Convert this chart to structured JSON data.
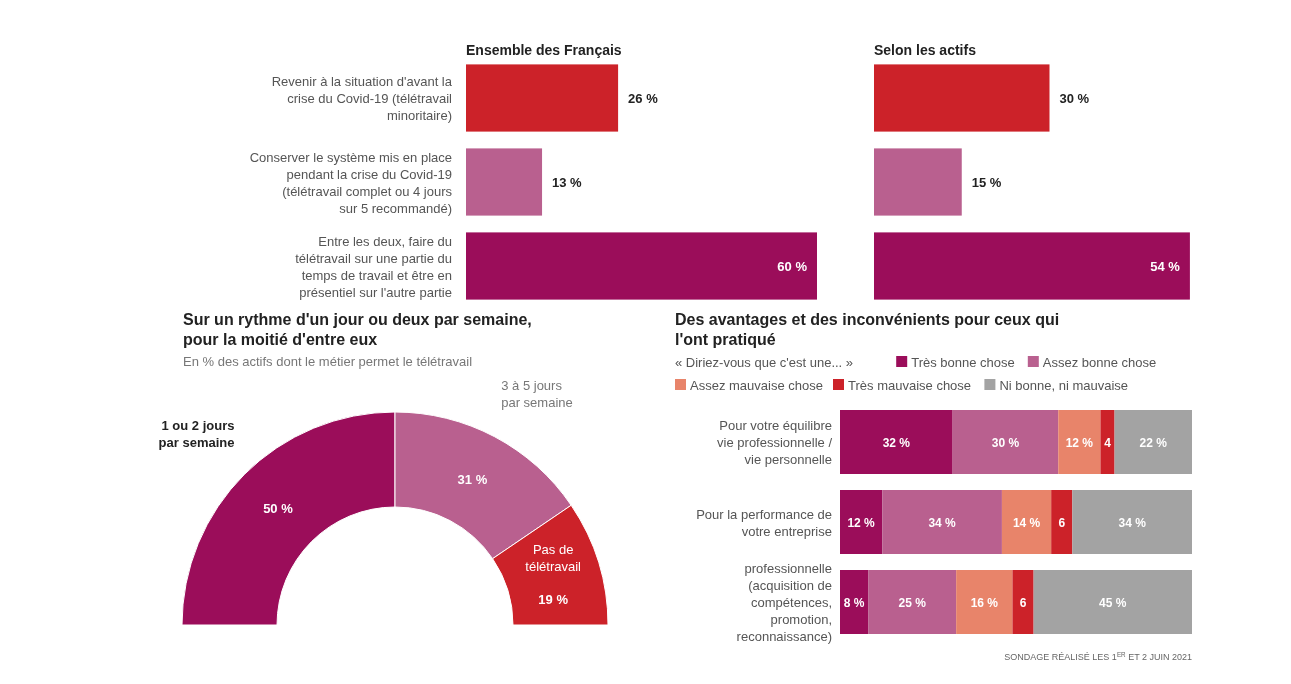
{
  "chart_data": [
    {
      "type": "bar",
      "orientation": "horizontal",
      "title": "Ensemble des Français",
      "categories": [
        "Revenir à la situation d'avant la crise du Covid-19 (télétravail minoritaire)",
        "Conserver le système mis en place pendant la crise du Covid-19 (télétravail complet ou 4 jours sur 5 recommandé)",
        "Entre les deux, faire du télétravail sur une partie du temps de travail et être en présentiel sur l'autre partie"
      ],
      "values": [
        26,
        13,
        60
      ],
      "colors": [
        "#cc2229",
        "#b9608f",
        "#9b0d5a"
      ],
      "value_labels": [
        "26 %",
        "13 %",
        "60 %"
      ]
    },
    {
      "type": "bar",
      "orientation": "horizontal",
      "title": "Selon les actifs",
      "categories": [
        null,
        null,
        null
      ],
      "values": [
        30,
        15,
        54
      ],
      "colors": [
        "#cc2229",
        "#b9608f",
        "#9b0d5a"
      ],
      "value_labels": [
        "30 %",
        "15 %",
        "54 %"
      ]
    },
    {
      "type": "donut",
      "title": "Sur un rythme d'un jour ou deux par semaine, pour la moitié d'entre eux",
      "subtitle": "En % des actifs dont le métier permet le télétravail",
      "categories": [
        "1 ou 2 jours par semaine",
        "3 à 5 jours par semaine",
        "Pas de télétravail"
      ],
      "values": [
        50,
        31,
        19
      ],
      "colors": [
        "#9b0d5a",
        "#b9608f",
        "#cc2229"
      ],
      "value_labels": [
        "50 %",
        "31 %",
        "19 %"
      ]
    },
    {
      "type": "bar",
      "orientation": "horizontal",
      "stacked": true,
      "legend": "top",
      "title": "Des avantages et des inconvénients pour ceux qui l'ont pratiqué",
      "legend_title": "« Diriez-vous que c'est une... »",
      "categories": [
        "Pour votre équilibre vie professionnelle / vie personnelle",
        "Pour la performance de votre entreprise",
        "professionnelle (acquisition de compétences, promotion, reconnaissance)"
      ],
      "series": [
        {
          "name": "Très bonne chose",
          "color": "#9b0d5a",
          "values": [
            32,
            12,
            8
          ],
          "value_labels": [
            "32 %",
            "12 %",
            "8 %"
          ]
        },
        {
          "name": "Assez bonne chose",
          "color": "#b9608f",
          "values": [
            30,
            34,
            25
          ],
          "value_labels": [
            "30 %",
            "34 %",
            "25 %"
          ]
        },
        {
          "name": "Assez mauvaise chose",
          "color": "#e8846a",
          "values": [
            12,
            14,
            16
          ],
          "value_labels": [
            "12 %",
            "14 %",
            "16 %"
          ]
        },
        {
          "name": "Très mauvaise chose",
          "color": "#cc2229",
          "values": [
            4,
            6,
            6
          ],
          "value_labels": [
            "4",
            "6",
            "6"
          ]
        },
        {
          "name": "Ni bonne, ni mauvaise",
          "color": "#a3a3a3",
          "values": [
            22,
            34,
            45
          ],
          "value_labels": [
            "22 %",
            "34 %",
            "45 %"
          ]
        }
      ],
      "annotations": [
        "SONDAGE RÉALISÉ LES 1$^{ER}$ ET 2 JUIN 2021"
      ]
    }
  ]
}
